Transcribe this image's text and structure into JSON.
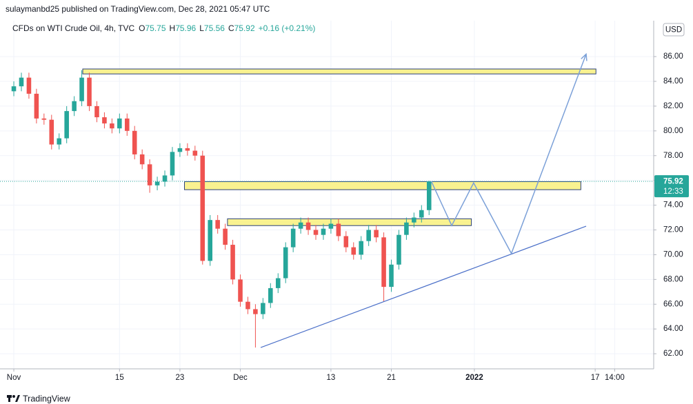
{
  "header": "sulaymanbd25 published on TradingView.com, Dec 28, 2021 05:47 UTC",
  "footer": "TradingView",
  "chart_data": {
    "type": "candlestick",
    "legend": {
      "name": "CFDs on WTI Crude Oil, 4h, TVC",
      "fields": [
        {
          "key": "O",
          "value": 75.75
        },
        {
          "key": "H",
          "value": 75.96
        },
        {
          "key": "L",
          "value": 75.56
        },
        {
          "key": "C",
          "value": 75.92
        }
      ],
      "change": "+0.16 (+0.21%)"
    },
    "currency": "USD",
    "last_price": {
      "value": 75.92,
      "label": "75.92"
    },
    "countdown": "12:33",
    "up_color": "#26a69a",
    "down_color": "#ef5350",
    "grid": true,
    "x": [
      0,
      1,
      2,
      3,
      4,
      5,
      6,
      7,
      8,
      9,
      10,
      11,
      12,
      13,
      14,
      15,
      16,
      17,
      18,
      19,
      20,
      21,
      22,
      23,
      24,
      25,
      26,
      27,
      28,
      29,
      30,
      31,
      32,
      33,
      34,
      35,
      36,
      37,
      38,
      39,
      40,
      41,
      42,
      43,
      44,
      45,
      46,
      47,
      48,
      49,
      50,
      51,
      52,
      53,
      54,
      55
    ],
    "open": [
      83.2,
      83.6,
      84.3,
      83.0,
      81.0,
      80.9,
      78.9,
      79.4,
      81.6,
      82.4,
      84.3,
      82.0,
      81.1,
      80.6,
      80.2,
      81.0,
      80.0,
      78.1,
      77.3,
      75.6,
      75.9,
      76.4,
      78.3,
      78.6,
      78.4,
      78.0,
      69.5,
      72.8,
      72.1,
      70.8,
      68.0,
      66.2,
      65.6,
      65.2,
      66.1,
      67.3,
      68.1,
      70.6,
      72.1,
      72.6,
      72.0,
      71.6,
      72.1,
      72.5,
      71.5,
      70.6,
      70.0,
      71.1,
      72.0,
      71.4,
      67.4,
      69.2,
      71.6,
      72.6,
      73.0,
      73.6
    ],
    "high": [
      84.0,
      84.7,
      84.7,
      83.4,
      81.4,
      81.3,
      79.8,
      82.0,
      82.8,
      84.9,
      84.7,
      82.4,
      81.5,
      81.0,
      81.4,
      81.4,
      80.4,
      78.5,
      77.7,
      76.3,
      76.8,
      78.7,
      79.0,
      79.0,
      78.8,
      78.4,
      73.2,
      73.2,
      72.5,
      71.2,
      68.4,
      66.6,
      66.0,
      66.5,
      67.7,
      68.5,
      71.0,
      72.5,
      73.0,
      73.0,
      72.4,
      72.5,
      72.9,
      72.9,
      71.9,
      71.0,
      71.5,
      72.4,
      72.4,
      71.8,
      69.6,
      72.0,
      73.0,
      73.4,
      74.0,
      75.96
    ],
    "low": [
      82.8,
      83.2,
      82.6,
      80.6,
      80.5,
      78.5,
      78.5,
      79.0,
      81.2,
      82.0,
      81.6,
      80.7,
      80.2,
      79.8,
      79.8,
      79.6,
      77.7,
      76.9,
      75.0,
      75.2,
      75.5,
      76.0,
      77.9,
      78.0,
      77.6,
      69.2,
      69.1,
      71.7,
      70.4,
      67.6,
      65.8,
      65.2,
      62.5,
      64.8,
      65.7,
      66.9,
      67.7,
      70.2,
      71.7,
      71.6,
      71.2,
      71.2,
      71.7,
      71.1,
      70.2,
      69.6,
      69.6,
      70.7,
      71.0,
      66.2,
      67.0,
      68.8,
      71.2,
      72.2,
      72.6,
      73.2
    ],
    "close": [
      83.6,
      84.3,
      83.0,
      81.0,
      80.9,
      78.9,
      79.4,
      81.6,
      82.4,
      84.3,
      82.0,
      81.1,
      80.6,
      80.2,
      81.0,
      80.0,
      78.1,
      77.3,
      75.6,
      75.9,
      76.4,
      78.3,
      78.6,
      78.4,
      78.0,
      69.5,
      72.8,
      72.1,
      70.8,
      68.0,
      66.2,
      65.6,
      65.2,
      66.1,
      67.3,
      68.1,
      70.6,
      72.1,
      72.6,
      72.0,
      71.6,
      72.1,
      72.5,
      71.5,
      70.6,
      70.0,
      71.1,
      72.0,
      71.4,
      67.4,
      69.2,
      71.6,
      72.6,
      73.0,
      73.6,
      75.92
    ],
    "zones": [
      {
        "x": [
          9.13,
          77.1
        ],
        "y": [
          84.6,
          85.0
        ]
      },
      {
        "x": [
          22.6,
          75.1
        ],
        "y": [
          75.25,
          75.9
        ]
      },
      {
        "x": [
          28.3,
          60.6
        ],
        "y": [
          72.35,
          72.9
        ]
      }
    ],
    "zone_color": "#f9f290",
    "trend_line": {
      "x": [
        32.7,
        75.8
      ],
      "y": [
        62.5,
        72.3
      ],
      "color": "#4a6fc8"
    },
    "projection": {
      "x": [
        55.3,
        58.0,
        60.9,
        65.9,
        75.8
      ],
      "y": [
        75.92,
        72.35,
        75.8,
        70.1,
        86.2
      ],
      "color": "#7ba0d8"
    },
    "xlim": [
      -1.83,
      84.75
    ],
    "ylim": [
      60.78,
      88.9
    ],
    "xticks": [
      {
        "value": 0,
        "label": "Nov"
      },
      {
        "value": 14,
        "label": "15"
      },
      {
        "value": 22,
        "label": "23"
      },
      {
        "value": 30,
        "label": "Dec"
      },
      {
        "value": 42,
        "label": "13"
      },
      {
        "value": 50,
        "label": "21"
      },
      {
        "value": 61,
        "label": "2022"
      },
      {
        "value": 77,
        "label": "17"
      },
      {
        "value": 79.58,
        "label": "14:00"
      }
    ],
    "yticks": [
      {
        "value": 62,
        "label": "62.00"
      },
      {
        "value": 64,
        "label": "64.00"
      },
      {
        "value": 66,
        "label": "66.00"
      },
      {
        "value": 68,
        "label": "68.00"
      },
      {
        "value": 70,
        "label": "70.00"
      },
      {
        "value": 72,
        "label": "72.00"
      },
      {
        "value": 74,
        "label": "74.00"
      },
      {
        "value": 76,
        "label": "76.00"
      },
      {
        "value": 78,
        "label": "78.00"
      },
      {
        "value": 80,
        "label": "80.00"
      },
      {
        "value": 82,
        "label": "82.00"
      },
      {
        "value": 84,
        "label": "84.00"
      },
      {
        "value": 86,
        "label": "86.00"
      }
    ]
  }
}
